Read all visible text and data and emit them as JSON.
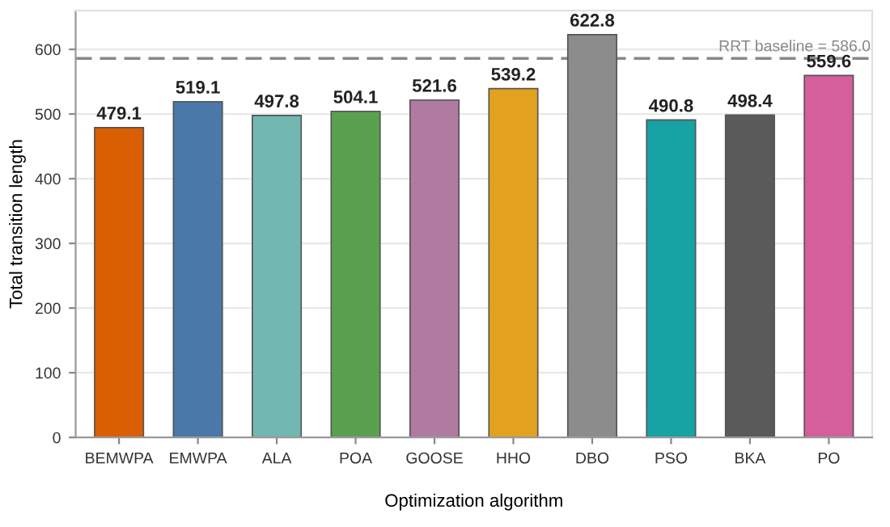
{
  "chart_data": {
    "type": "bar",
    "xlabel": "Optimization algorithm",
    "ylabel": "Total transition length",
    "categories": [
      "BEMWPA",
      "EMWPA",
      "ALA",
      "POA",
      "GOOSE",
      "HHO",
      "DBO",
      "PSO",
      "BKA",
      "PO"
    ],
    "values": [
      479.1,
      519.1,
      497.8,
      504.1,
      521.6,
      539.2,
      622.8,
      490.8,
      498.4,
      559.6
    ],
    "colors": [
      "#d95f02",
      "#4a78a8",
      "#72b7b2",
      "#59a14f",
      "#b07aa1",
      "#e2a21f",
      "#8c8c8c",
      "#17a2a4",
      "#5a5a5a",
      "#d45f9a"
    ],
    "ylim": [
      0,
      660
    ],
    "yticks": [
      0,
      100,
      200,
      300,
      400,
      500,
      600
    ],
    "grid": "y",
    "data_labels": true,
    "legend": false,
    "ref_lines": [
      {
        "axis": "y",
        "value": 586.0,
        "label": "RRT baseline = 586.0",
        "color": "#888888",
        "line_style": "dashed"
      }
    ]
  }
}
